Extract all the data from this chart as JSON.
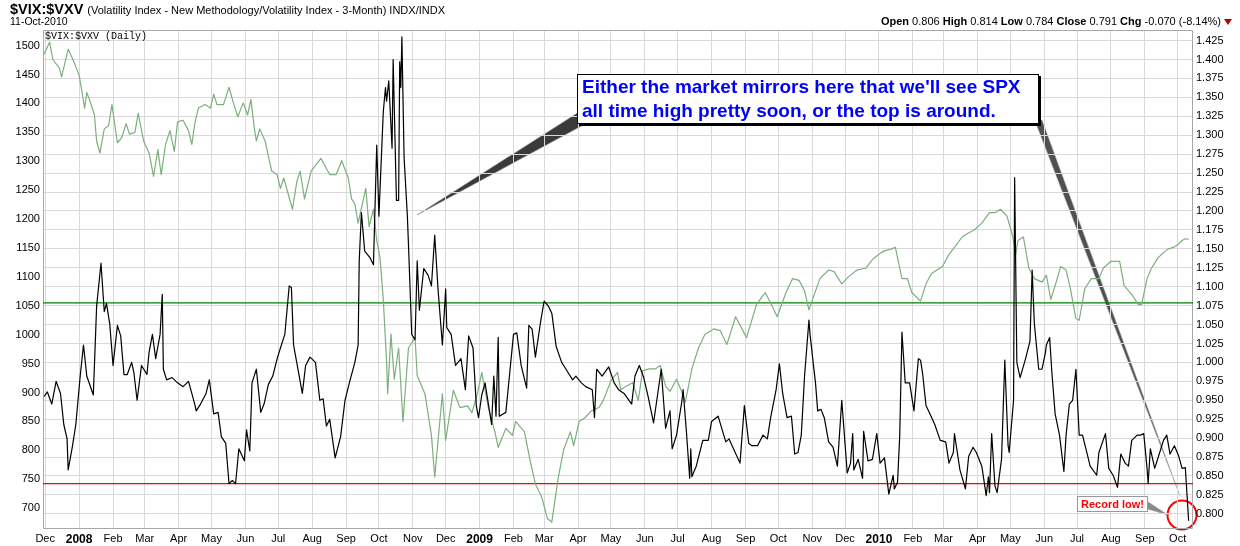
{
  "chart_data": {
    "type": "line",
    "title": "$VIX:$VXV",
    "subtitle": "(Volatility Index - New Methodology/Volatility Index - 3-Month) INDX/INDX",
    "annotations": [
      "11-Oct-2010",
      "Open 0.806 High 0.814 Low 0.784 Close 0.791 Chg -0.070 (-8.14%)",
      "$VIX:$VXV (Daily)",
      "Either the market mirrors here that we'll see SPX all time high pretty soon, or the top is around.",
      "Record low!"
    ],
    "xlim": [
      "2007-11-29",
      "2010-10-15"
    ],
    "xticks": [
      {
        "value": "2007-12-01",
        "label": "Dec"
      },
      {
        "value": "2008-01-01",
        "label": "2008"
      },
      {
        "value": "2008-02-01",
        "label": "Feb"
      },
      {
        "value": "2008-03-01",
        "label": "Mar"
      },
      {
        "value": "2008-04-01",
        "label": "Apr"
      },
      {
        "value": "2008-05-01",
        "label": "May"
      },
      {
        "value": "2008-06-01",
        "label": "Jun"
      },
      {
        "value": "2008-07-01",
        "label": "Jul"
      },
      {
        "value": "2008-08-01",
        "label": "Aug"
      },
      {
        "value": "2008-09-01",
        "label": "Sep"
      },
      {
        "value": "2008-10-01",
        "label": "Oct"
      },
      {
        "value": "2008-11-01",
        "label": "Nov"
      },
      {
        "value": "2008-12-01",
        "label": "Dec"
      },
      {
        "value": "2009-01-01",
        "label": "2009"
      },
      {
        "value": "2009-02-01",
        "label": "Feb"
      },
      {
        "value": "2009-03-01",
        "label": "Mar"
      },
      {
        "value": "2009-04-01",
        "label": "Apr"
      },
      {
        "value": "2009-05-01",
        "label": "May"
      },
      {
        "value": "2009-06-01",
        "label": "Jun"
      },
      {
        "value": "2009-07-01",
        "label": "Jul"
      },
      {
        "value": "2009-08-01",
        "label": "Aug"
      },
      {
        "value": "2009-09-01",
        "label": "Sep"
      },
      {
        "value": "2009-10-01",
        "label": "Oct"
      },
      {
        "value": "2009-11-01",
        "label": "Nov"
      },
      {
        "value": "2009-12-01",
        "label": "Dec"
      },
      {
        "value": "2010-01-01",
        "label": "2010"
      },
      {
        "value": "2010-02-01",
        "label": "Feb"
      },
      {
        "value": "2010-03-01",
        "label": "Mar"
      },
      {
        "value": "2010-04-01",
        "label": "Apr"
      },
      {
        "value": "2010-05-01",
        "label": "May"
      },
      {
        "value": "2010-06-01",
        "label": "Jun"
      },
      {
        "value": "2010-07-01",
        "label": "Jul"
      },
      {
        "value": "2010-08-01",
        "label": "Aug"
      },
      {
        "value": "2010-09-01",
        "label": "Sep"
      },
      {
        "value": "2010-10-01",
        "label": "Oct"
      }
    ],
    "ylim": [
      664,
      1527
    ],
    "yticks": [
      700,
      750,
      800,
      850,
      900,
      950,
      1000,
      1050,
      1100,
      1150,
      1200,
      1250,
      1300,
      1350,
      1400,
      1450,
      1500
    ],
    "y2lim": [
      0.78,
      1.439
    ],
    "y2ticks": [
      {
        "value": 0.8,
        "label": "0.800"
      },
      0.825,
      {
        "value": 0.85,
        "label": "0.850"
      },
      0.875,
      {
        "value": 0.9,
        "label": "0.900"
      },
      0.925,
      {
        "value": 0.95,
        "label": "0.950"
      },
      0.975,
      {
        "value": 1,
        "label": "1.000"
      },
      1.025,
      {
        "value": 1.05,
        "label": "1.050"
      },
      1.075,
      {
        "value": 1.1,
        "label": "1.100"
      },
      1.125,
      {
        "value": 1.15,
        "label": "1.150"
      },
      1.175,
      {
        "value": 1.2,
        "label": "1.200"
      },
      1.225,
      {
        "value": 1.25,
        "label": "1.250"
      },
      1.275,
      {
        "value": 1.3,
        "label": "1.300"
      },
      1.325,
      {
        "value": 1.35,
        "label": "1.350"
      },
      1.375,
      {
        "value": 1.4,
        "label": "1.400"
      },
      1.425
    ],
    "grid": true,
    "ref_lines": [
      {
        "axis": "y2",
        "value": 0.84,
        "color": "#ff0000"
      },
      {
        "axis": "y",
        "value": 1055,
        "color": "#008000"
      }
    ],
    "series": [
      {
        "color": "#000000",
        "axis": "y2",
        "x": [
          "2007-11-30",
          "2007-12-03",
          "2007-12-07",
          "2007-12-11",
          "2007-12-15",
          "2007-12-18",
          "2007-12-21",
          "2007-12-22",
          "2007-12-26",
          "2007-12-29",
          "2008-01-02",
          "2008-01-05",
          "2008-01-08",
          "2008-01-14",
          "2008-01-17",
          "2008-01-21",
          "2008-01-24",
          "2008-01-26",
          "2008-01-29",
          "2008-02-01",
          "2008-02-05",
          "2008-02-08",
          "2008-02-11",
          "2008-02-14",
          "2008-02-18",
          "2008-02-20",
          "2008-02-23",
          "2008-02-27",
          "2008-03-03",
          "2008-03-05",
          "2008-03-08",
          "2008-03-11",
          "2008-03-15",
          "2008-03-17",
          "2008-03-18",
          "2008-03-21",
          "2008-03-26",
          "2008-03-31",
          "2008-04-05",
          "2008-04-10",
          "2008-04-13",
          "2008-04-16",
          "2008-04-17",
          "2008-04-21",
          "2008-04-26",
          "2008-04-29",
          "2008-05-03",
          "2008-05-07",
          "2008-05-10",
          "2008-05-14",
          "2008-05-17",
          "2008-05-20",
          "2008-05-23",
          "2008-05-26",
          "2008-05-31",
          "2008-06-02",
          "2008-06-05",
          "2008-06-07",
          "2008-06-11",
          "2008-06-15",
          "2008-06-18",
          "2008-06-22",
          "2008-06-26",
          "2008-06-30",
          "2008-07-03",
          "2008-07-07",
          "2008-07-11",
          "2008-07-13",
          "2008-07-15",
          "2008-07-19",
          "2008-07-23",
          "2008-07-26",
          "2008-07-30",
          "2008-08-04",
          "2008-08-08",
          "2008-08-11",
          "2008-08-14",
          "2008-08-17",
          "2008-08-22",
          "2008-08-27",
          "2008-08-31",
          "2008-09-04",
          "2008-09-09",
          "2008-09-12",
          "2008-09-13",
          "2008-09-15",
          "2008-09-18",
          "2008-09-23",
          "2008-09-26",
          "2008-09-29",
          "2008-10-01",
          "2008-10-02",
          "2008-10-05",
          "2008-10-07",
          "2008-10-08",
          "2008-10-10",
          "2008-10-13",
          "2008-10-14",
          "2008-10-17",
          "2008-10-19",
          "2008-10-20",
          "2008-10-21",
          "2008-10-22",
          "2008-10-24",
          "2008-10-27",
          "2008-10-28",
          "2008-10-31",
          "2008-11-03",
          "2008-11-05",
          "2008-11-07",
          "2008-11-11",
          "2008-11-15",
          "2008-11-18",
          "2008-11-21",
          "2008-11-24",
          "2008-11-28",
          "2008-12-01",
          "2008-12-02",
          "2008-12-06",
          "2008-12-10",
          "2008-12-15",
          "2008-12-19",
          "2008-12-22",
          "2008-12-26",
          "2008-12-29",
          "2008-12-31",
          "2009-01-03",
          "2009-01-06",
          "2009-01-12",
          "2009-01-14",
          "2009-01-16",
          "2009-01-18",
          "2009-01-19",
          "2009-01-25",
          "2009-02-01",
          "2009-02-04",
          "2009-02-08",
          "2009-02-13",
          "2009-02-15",
          "2009-02-18",
          "2009-02-21",
          "2009-02-26",
          "2009-03-01",
          "2009-03-05",
          "2009-03-08",
          "2009-03-12",
          "2009-03-17",
          "2009-03-21",
          "2009-03-27",
          "2009-03-30",
          "2009-04-04",
          "2009-04-08",
          "2009-04-14",
          "2009-04-16",
          "2009-04-18",
          "2009-04-23",
          "2009-04-29",
          "2009-05-04",
          "2009-05-08",
          "2009-05-13",
          "2009-05-20",
          "2009-05-23",
          "2009-05-27",
          "2009-05-31",
          "2009-06-04",
          "2009-06-09",
          "2009-06-16",
          "2009-06-20",
          "2009-06-24",
          "2009-06-26",
          "2009-06-30",
          "2009-07-05",
          "2009-07-06",
          "2009-07-09",
          "2009-07-12",
          "2009-07-13",
          "2009-07-14",
          "2009-07-18",
          "2009-07-24",
          "2009-07-29",
          "2009-08-01",
          "2009-08-07",
          "2009-08-14",
          "2009-08-17",
          "2009-08-27",
          "2009-08-31",
          "2009-09-04",
          "2009-09-07",
          "2009-09-12",
          "2009-09-17",
          "2009-09-21",
          "2009-09-24",
          "2009-09-29",
          "2009-10-02",
          "2009-10-05",
          "2009-10-09",
          "2009-10-13",
          "2009-10-16",
          "2009-10-19",
          "2009-10-22",
          "2009-10-25",
          "2009-10-29",
          "2009-10-30",
          "2009-11-02",
          "2009-11-04",
          "2009-11-06",
          "2009-11-09",
          "2009-11-12",
          "2009-11-16",
          "2009-11-20",
          "2009-11-24",
          "2009-11-28",
          "2009-12-03",
          "2009-12-06",
          "2009-12-08",
          "2009-12-09",
          "2009-12-13",
          "2009-12-17",
          "2009-12-18",
          "2009-12-22",
          "2009-12-26",
          "2009-12-30",
          "2010-01-02",
          "2010-01-06",
          "2010-01-10",
          "2010-01-14",
          "2010-01-15",
          "2010-01-18",
          "2010-01-20",
          "2010-01-22",
          "2010-01-25",
          "2010-01-29",
          "2010-02-02",
          "2010-02-06",
          "2010-02-08",
          "2010-02-10",
          "2010-02-13",
          "2010-02-16",
          "2010-02-21",
          "2010-02-26",
          "2010-03-03",
          "2010-03-06",
          "2010-03-10",
          "2010-03-11",
          "2010-03-16",
          "2010-03-21",
          "2010-03-24",
          "2010-03-28",
          "2010-03-31",
          "2010-04-05",
          "2010-04-09",
          "2010-04-11",
          "2010-04-12",
          "2010-04-14",
          "2010-04-17",
          "2010-04-19",
          "2010-04-23",
          "2010-04-26",
          "2010-04-29",
          "2010-04-30",
          "2010-05-04",
          "2010-05-05",
          "2010-05-07",
          "2010-05-10",
          "2010-05-15",
          "2010-05-19",
          "2010-05-21",
          "2010-05-23",
          "2010-05-27",
          "2010-05-30",
          "2010-06-02",
          "2010-06-03",
          "2010-06-06",
          "2010-06-08",
          "2010-06-11",
          "2010-06-15",
          "2010-06-19",
          "2010-06-21",
          "2010-06-24",
          "2010-06-27",
          "2010-06-30",
          "2010-07-03",
          "2010-07-06",
          "2010-07-10",
          "2010-07-13",
          "2010-07-19",
          "2010-07-21",
          "2010-07-27",
          "2010-07-30",
          "2010-08-03",
          "2010-08-07",
          "2010-08-10",
          "2010-08-14",
          "2010-08-17",
          "2010-08-20",
          "2010-08-25",
          "2010-08-28",
          "2010-08-31",
          "2010-09-03",
          "2010-09-04",
          "2010-09-06",
          "2010-09-10",
          "2010-09-15",
          "2010-09-18",
          "2010-09-21",
          "2010-09-24",
          "2010-09-28",
          "2010-10-02",
          "2010-10-05",
          "2010-10-08",
          "2010-10-11"
        ],
        "values": [
          0.955,
          0.961,
          0.945,
          0.975,
          0.959,
          0.918,
          0.899,
          0.858,
          0.89,
          0.918,
          0.982,
          1.023,
          0.982,
          0.957,
          1.074,
          1.131,
          1.067,
          1.078,
          1.051,
          0.996,
          1.049,
          1.035,
          0.984,
          0.984,
          1.0,
          0.987,
          0.95,
          0.996,
          0.984,
          1.014,
          1.037,
          1.005,
          1.037,
          1.09,
          0.991,
          0.977,
          0.98,
          0.973,
          0.968,
          0.975,
          0.959,
          0.943,
          0.936,
          0.945,
          0.959,
          0.977,
          0.932,
          0.934,
          0.902,
          0.893,
          0.84,
          0.844,
          0.84,
          0.886,
          0.87,
          0.911,
          0.883,
          0.973,
          0.991,
          0.934,
          0.945,
          0.971,
          0.982,
          1.005,
          1.019,
          1.037,
          1.101,
          1.099,
          1.023,
          0.991,
          0.959,
          0.996,
          1.007,
          1.0,
          0.95,
          0.952,
          0.916,
          0.925,
          0.874,
          0.902,
          0.95,
          0.973,
          1.0,
          1.023,
          1.134,
          1.198,
          1.147,
          1.138,
          1.129,
          1.287,
          1.193,
          1.228,
          1.331,
          1.363,
          1.345,
          1.372,
          1.283,
          1.4,
          1.214,
          1.214,
          1.397,
          1.363,
          1.43,
          1.271,
          1.193,
          1.156,
          1.037,
          1.03,
          1.134,
          1.069,
          1.124,
          1.115,
          1.101,
          1.168,
          1.097,
          1.023,
          1.097,
          1.046,
          1.037,
          0.996,
          1.005,
          0.964,
          1.035,
          1.019,
          0.943,
          0.927,
          0.957,
          0.973,
          0.918,
          0.982,
          0.929,
          1.033,
          0.929,
          0.934,
          1.037,
          1.039,
          0.996,
          0.966,
          1.049,
          1.044,
          1.007,
          1.056,
          1.081,
          1.074,
          1.065,
          1.021,
          1.0,
          0.991,
          0.977,
          0.982,
          0.973,
          0.968,
          0.964,
          0.927,
          0.991,
          0.982,
          0.994,
          0.973,
          0.964,
          0.959,
          0.945,
          0.982,
          0.996,
          0.98,
          0.955,
          0.92,
          0.991,
          0.913,
          0.936,
          0.886,
          0.904,
          0.95,
          0.964,
          0.909,
          0.847,
          0.886,
          0.849,
          0.863,
          0.897,
          0.897,
          0.922,
          0.929,
          0.895,
          0.899,
          0.867,
          0.943,
          0.893,
          0.89,
          0.89,
          0.904,
          0.899,
          0.927,
          0.964,
          0.998,
          0.959,
          0.927,
          0.929,
          0.879,
          0.881,
          0.904,
          0.982,
          1.056,
          1.037,
          0.998,
          0.973,
          0.936,
          0.938,
          0.927,
          0.895,
          0.888,
          0.863,
          0.95,
          0.854,
          0.867,
          0.906,
          0.858,
          0.872,
          0.847,
          0.909,
          0.87,
          0.872,
          0.906,
          0.867,
          0.874,
          0.826,
          0.851,
          0.833,
          0.842,
          0.904,
          1.04,
          0.973,
          0.973,
          0.936,
          1.005,
          1.003,
          0.984,
          0.943,
          0.934,
          0.918,
          0.897,
          0.895,
          0.867,
          0.881,
          0.906,
          0.858,
          0.833,
          0.876,
          0.888,
          0.881,
          0.863,
          0.824,
          0.849,
          0.828,
          0.906,
          0.837,
          0.828,
          0.872,
          1.003,
          0.89,
          0.881,
          0.95,
          1.244,
          1.0,
          0.98,
          1.005,
          1.028,
          1.122,
          1.051,
          0.991,
          0.991,
          1.012,
          1.023,
          1.033,
          0.987,
          0.932,
          0.904,
          0.856,
          0.904,
          0.945,
          0.95,
          0.991,
          0.904,
          0.904,
          0.881,
          0.863,
          0.851,
          0.881,
          0.906,
          0.86,
          0.851,
          0.835,
          0.879,
          0.867,
          0.863,
          0.897,
          0.904,
          0.904,
          0.906,
          0.86,
          0.84,
          0.886,
          0.86,
          0.883,
          0.897,
          0.904,
          0.879,
          0.89,
          0.876,
          0.86,
          0.861,
          0.791
        ]
      },
      {
        "color": "#7daf7d",
        "x": [
          "2007-11-30",
          "2007-12-05",
          "2007-12-08",
          "2007-12-14",
          "2007-12-16",
          "2007-12-22",
          "2007-12-27",
          "2008-01-01",
          "2008-01-04",
          "2008-01-06",
          "2008-01-08",
          "2008-01-11",
          "2008-01-15",
          "2008-01-17",
          "2008-01-20",
          "2008-01-24",
          "2008-01-28",
          "2008-01-31",
          "2008-02-05",
          "2008-02-09",
          "2008-02-13",
          "2008-02-16",
          "2008-02-21",
          "2008-02-24",
          "2008-02-29",
          "2008-03-05",
          "2008-03-09",
          "2008-03-13",
          "2008-03-16",
          "2008-03-20",
          "2008-03-24",
          "2008-03-28",
          "2008-03-31",
          "2008-04-05",
          "2008-04-10",
          "2008-04-13",
          "2008-04-16",
          "2008-04-19",
          "2008-04-25",
          "2008-04-30",
          "2008-05-03",
          "2008-05-06",
          "2008-05-12",
          "2008-05-17",
          "2008-05-21",
          "2008-05-25",
          "2008-05-30",
          "2008-06-03",
          "2008-06-06",
          "2008-06-09",
          "2008-06-11",
          "2008-06-14",
          "2008-06-19",
          "2008-06-25",
          "2008-06-30",
          "2008-07-03",
          "2008-07-06",
          "2008-07-14",
          "2008-07-18",
          "2008-07-21",
          "2008-07-25",
          "2008-07-31",
          "2008-08-09",
          "2008-08-17",
          "2008-08-23",
          "2008-08-28",
          "2008-09-03",
          "2008-09-06",
          "2008-09-09",
          "2008-09-12",
          "2008-09-19",
          "2008-09-22",
          "2008-09-26",
          "2008-09-29",
          "2008-10-02",
          "2008-10-05",
          "2008-10-08",
          "2008-10-09",
          "2008-10-12",
          "2008-10-15",
          "2008-10-19",
          "2008-10-23",
          "2008-10-28",
          "2008-11-03",
          "2008-11-05",
          "2008-11-12",
          "2008-11-18",
          "2008-11-21",
          "2008-11-28",
          "2008-12-01",
          "2008-12-08",
          "2008-12-14",
          "2008-12-21",
          "2008-12-25",
          "2008-12-30",
          "2009-01-03",
          "2009-01-09",
          "2009-01-15",
          "2009-01-18",
          "2009-01-25",
          "2009-01-31",
          "2009-02-03",
          "2009-02-11",
          "2009-02-16",
          "2009-02-21",
          "2009-02-27",
          "2009-03-04",
          "2009-03-08",
          "2009-03-14",
          "2009-03-19",
          "2009-03-25",
          "2009-03-28",
          "2009-04-02",
          "2009-04-07",
          "2009-04-13",
          "2009-04-20",
          "2009-04-24",
          "2009-05-01",
          "2009-05-07",
          "2009-05-10",
          "2009-05-15",
          "2009-05-21",
          "2009-05-26",
          "2009-05-30",
          "2009-06-05",
          "2009-06-11",
          "2009-06-15",
          "2009-06-20",
          "2009-06-24",
          "2009-06-30",
          "2009-07-04",
          "2009-07-08",
          "2009-07-14",
          "2009-07-20",
          "2009-07-26",
          "2009-08-03",
          "2009-08-09",
          "2009-08-15",
          "2009-08-23",
          "2009-09-02",
          "2009-09-11",
          "2009-09-19",
          "2009-09-24",
          "2009-09-30",
          "2009-10-08",
          "2009-10-14",
          "2009-10-20",
          "2009-10-25",
          "2009-10-29",
          "2009-11-08",
          "2009-11-16",
          "2009-11-21",
          "2009-11-28",
          "2009-12-04",
          "2009-12-12",
          "2009-12-20",
          "2009-12-26",
          "2010-01-03",
          "2010-01-06",
          "2010-01-12",
          "2010-01-16",
          "2010-01-22",
          "2010-01-27",
          "2010-01-31",
          "2010-02-08",
          "2010-02-13",
          "2010-02-18",
          "2010-02-28",
          "2010-03-06",
          "2010-03-11",
          "2010-03-18",
          "2010-03-23",
          "2010-03-29",
          "2010-04-05",
          "2010-04-12",
          "2010-04-17",
          "2010-04-22",
          "2010-04-28",
          "2010-05-03",
          "2010-05-06",
          "2010-05-08",
          "2010-05-13",
          "2010-05-18",
          "2010-05-23",
          "2010-05-30",
          "2010-06-03",
          "2010-06-07",
          "2010-06-12",
          "2010-06-16",
          "2010-06-21",
          "2010-06-25",
          "2010-06-30",
          "2010-07-03",
          "2010-07-08",
          "2010-07-14",
          "2010-07-21",
          "2010-07-25",
          "2010-08-01",
          "2010-08-09",
          "2010-08-13",
          "2010-08-21",
          "2010-08-26",
          "2010-08-29",
          "2010-09-03",
          "2010-09-07",
          "2010-09-13",
          "2010-09-18",
          "2010-09-22",
          "2010-09-27",
          "2010-10-02",
          "2010-10-05",
          "2010-10-08",
          "2010-10-11"
        ],
        "values": [
          1485,
          1506,
          1476,
          1461,
          1446,
          1494,
          1473,
          1449,
          1416,
          1392,
          1419,
          1404,
          1380,
          1335,
          1314,
          1356,
          1362,
          1398,
          1332,
          1341,
          1365,
          1347,
          1350,
          1383,
          1335,
          1314,
          1274,
          1320,
          1277,
          1329,
          1353,
          1317,
          1368,
          1371,
          1353,
          1329,
          1368,
          1392,
          1398,
          1392,
          1416,
          1398,
          1398,
          1428,
          1401,
          1377,
          1401,
          1380,
          1407,
          1359,
          1335,
          1356,
          1335,
          1283,
          1277,
          1253,
          1271,
          1217,
          1265,
          1283,
          1235,
          1283,
          1305,
          1277,
          1277,
          1301,
          1271,
          1235,
          1226,
          1193,
          1253,
          1187,
          1217,
          1163,
          1133,
          1061,
          953,
          898,
          1001,
          923,
          977,
          850,
          977,
          995,
          929,
          898,
          826,
          754,
          898,
          817,
          904,
          874,
          877,
          865,
          898,
          935,
          874,
          832,
          805,
          838,
          826,
          850,
          832,
          784,
          742,
          718,
          682,
          676,
          754,
          802,
          832,
          808,
          850,
          856,
          868,
          874,
          886,
          920,
          935,
          905,
          911,
          917,
          886,
          938,
          941,
          941,
          947,
          911,
          902,
          923,
          905,
          883,
          941,
          977,
          1001,
          1010,
          1007,
          983,
          1031,
          995,
          1052,
          1073,
          1055,
          1031,
          1073,
          1097,
          1094,
          1076,
          1043,
          1097,
          1112,
          1109,
          1088,
          1100,
          1112,
          1115,
          1130,
          1142,
          1145,
          1148,
          1151,
          1097,
          1097,
          1073,
          1058,
          1088,
          1106,
          1118,
          1139,
          1151,
          1169,
          1175,
          1181,
          1193,
          1211,
          1211,
          1217,
          1205,
          1172,
          1139,
          1163,
          1169,
          1115,
          1097,
          1091,
          1103,
          1061,
          1091,
          1118,
          1112,
          1079,
          1028,
          1025,
          1079,
          1097,
          1097,
          1115,
          1127,
          1127,
          1085,
          1067,
          1052,
          1052,
          1097,
          1115,
          1133,
          1142,
          1148,
          1151,
          1157,
          1163,
          1166,
          1165
        ]
      }
    ]
  }
}
